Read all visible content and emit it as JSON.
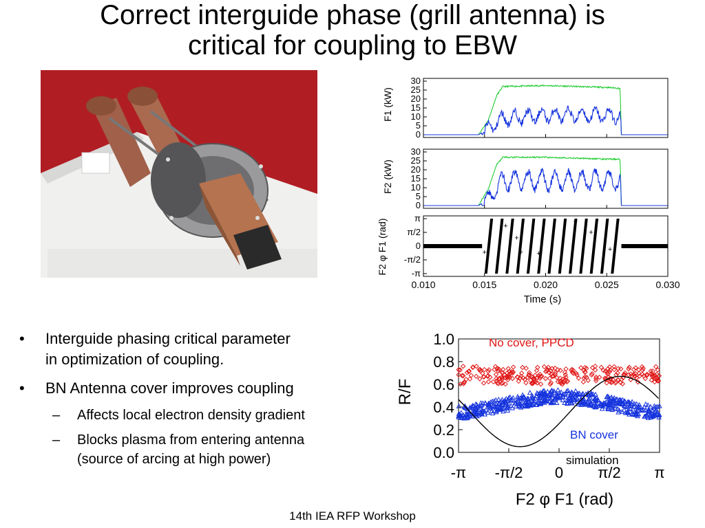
{
  "slide": {
    "title_line1": "Correct interguide phase (grill antenna) is",
    "title_line2": "critical for coupling to EBW",
    "footer": "14th IEA RFP Workshop"
  },
  "bullets": [
    {
      "level": 1,
      "text_line1": "Interguide phasing critical parameter",
      "text_line2": "in optimization of coupling."
    },
    {
      "level": 1,
      "text_line1": "BN Antenna cover improves coupling",
      "text_line2": ""
    },
    {
      "level": 2,
      "text_line1": "Affects local electron density gradient",
      "text_line2": ""
    },
    {
      "level": 2,
      "text_line1": "Blocks plasma from entering antenna",
      "text_line2": "(source of arcing at high power)"
    }
  ],
  "colors": {
    "green": "#22cc33",
    "blue": "#1533dd",
    "red": "#e01515",
    "photo_bg": "#b01e24"
  },
  "chart_data": [
    {
      "type": "line",
      "ylabel": "F1 (kW)",
      "yticks": [
        "30",
        "25",
        "20",
        "15",
        "10",
        "5",
        "0"
      ],
      "ylim": [
        0,
        30
      ],
      "xlim": [
        0.01,
        0.03
      ],
      "series": [
        {
          "color": "green",
          "x": [
            0.01,
            0.0145,
            0.0153,
            0.016,
            0.0165,
            0.02,
            0.025,
            0.0261,
            0.0262,
            0.03
          ],
          "y": [
            0,
            0,
            8,
            22,
            27,
            27.5,
            26.5,
            26,
            0,
            0
          ]
        },
        {
          "color": "blue",
          "x": [
            0.01,
            0.0145,
            0.0153,
            0.016,
            0.0165,
            0.02,
            0.025,
            0.0261,
            0.0262,
            0.03
          ],
          "y": [
            0,
            0,
            3,
            7,
            9,
            11,
            11,
            10,
            0,
            0
          ]
        }
      ]
    },
    {
      "type": "line",
      "ylabel": "F2 (kW)",
      "yticks": [
        "30",
        "25",
        "20",
        "15",
        "10",
        "5",
        "0"
      ],
      "ylim": [
        0,
        30
      ],
      "xlim": [
        0.01,
        0.03
      ],
      "series": [
        {
          "color": "green",
          "x": [
            0.01,
            0.0145,
            0.0153,
            0.016,
            0.0165,
            0.02,
            0.025,
            0.0261,
            0.0262,
            0.03
          ],
          "y": [
            0,
            0,
            9,
            23,
            27,
            27,
            26,
            26,
            0,
            0
          ]
        },
        {
          "color": "blue",
          "x": [
            0.01,
            0.0145,
            0.0153,
            0.016,
            0.0165,
            0.02,
            0.025,
            0.0261,
            0.0262,
            0.03
          ],
          "y": [
            0,
            0,
            3,
            10,
            14,
            14,
            14,
            14,
            0,
            0
          ]
        }
      ]
    },
    {
      "type": "scatter",
      "ylabel": "F2 φ F1 (rad)",
      "yticks": [
        "π",
        "π/2",
        "0",
        "-π/2",
        "-π"
      ],
      "xticks": [
        "0.010",
        "0.015",
        "0.020",
        "0.025",
        "0.030"
      ],
      "xlabel": "Time (s)",
      "xlim": [
        0.01,
        0.03
      ],
      "ylim": [
        -3.1416,
        3.1416
      ],
      "phase_wraps": 13
    },
    {
      "type": "scatter",
      "ylabel": "R/F",
      "xlabel": "F2 φ F1 (rad)",
      "yticks": [
        "1.0",
        "0.8",
        "0.6",
        "0.4",
        "0.2",
        "0.0"
      ],
      "xticks": [
        "-π",
        "-π/2",
        "0",
        "π/2",
        "π"
      ],
      "ylim": [
        0,
        1.0
      ],
      "xlim": [
        -3.1416,
        3.1416
      ],
      "series": [
        {
          "name": "No cover, PPCD",
          "color": "red",
          "marker": "diamond",
          "y_mean": 0.68,
          "y_spread": 0.08
        },
        {
          "name": "BN cover",
          "color": "blue",
          "marker": "triangle",
          "y_mean": 0.42,
          "y_spread": 0.06
        },
        {
          "name": "simulation",
          "color": "black",
          "marker": "line",
          "amplitude": 0.31,
          "offset": 0.36
        }
      ]
    }
  ]
}
